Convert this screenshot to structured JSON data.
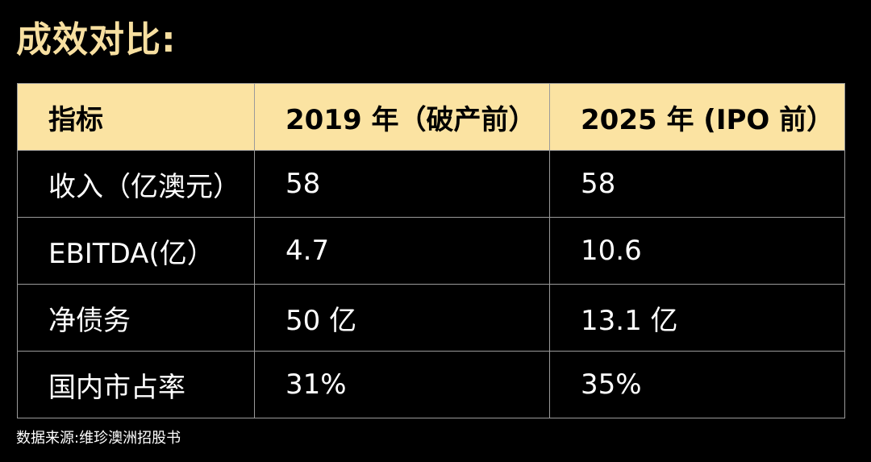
{
  "title": "成效对比:",
  "table": {
    "headers": [
      "指标",
      "2019 年（破产前）",
      "2025 年 (IPO 前）"
    ],
    "rows": [
      [
        "收入（亿澳元）",
        "58",
        "58"
      ],
      [
        "EBITDA(亿）",
        "4.7",
        "10.6"
      ],
      [
        "净债务",
        "50 亿",
        "13.1 亿"
      ],
      [
        "国内市占率",
        "31%",
        "35%"
      ]
    ]
  },
  "source": "数据来源:维珍澳洲招股书",
  "colors": {
    "background": "#000000",
    "title": "#f7dfa0",
    "header_fill": "#fbe3a2",
    "header_text": "#000000",
    "body_text": "#ffffff",
    "grid": "#9a9a9a"
  }
}
